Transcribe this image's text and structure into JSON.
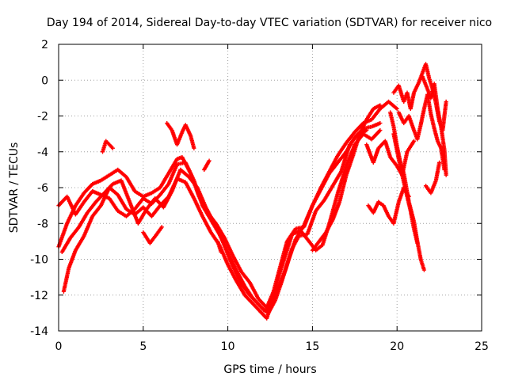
{
  "chart_data": {
    "type": "scatter",
    "title": "Day 194 of 2014, Sidereal Day-to-day VTEC variation (SDTVAR) for receiver nico",
    "xlabel": "GPS time / hours",
    "ylabel": "SDTVAR / TECUs",
    "xlim": [
      0,
      25
    ],
    "ylim": [
      -14,
      2
    ],
    "xticks": [
      0,
      5,
      10,
      15,
      20,
      25
    ],
    "yticks": [
      -14,
      -12,
      -10,
      -8,
      -6,
      -4,
      -2,
      0,
      2
    ],
    "grid": true,
    "marker": "plus",
    "color": "#ff0000",
    "series": [
      {
        "name": "track-1",
        "points": [
          [
            0.0,
            -7.0
          ],
          [
            0.5,
            -6.5
          ],
          [
            1.0,
            -7.5
          ],
          [
            1.5,
            -6.8
          ],
          [
            2.0,
            -6.2
          ],
          [
            2.5,
            -6.4
          ],
          [
            3.0,
            -6.6
          ],
          [
            3.5,
            -7.3
          ],
          [
            4.0,
            -7.6
          ],
          [
            4.5,
            -7.2
          ],
          [
            5.0,
            -6.6
          ],
          [
            5.5,
            -6.9
          ],
          [
            6.0,
            -6.4
          ],
          [
            6.5,
            -5.8
          ],
          [
            7.0,
            -4.7
          ],
          [
            7.5,
            -4.6
          ],
          [
            8.0,
            -5.6
          ],
          [
            8.5,
            -7.0
          ],
          [
            9.0,
            -7.8
          ],
          [
            9.5,
            -8.6
          ],
          [
            10.0,
            -9.6
          ],
          [
            10.5,
            -10.6
          ],
          [
            11.0,
            -11.5
          ],
          [
            11.5,
            -12.2
          ],
          [
            12.0,
            -12.7
          ],
          [
            12.4,
            -13.0
          ],
          [
            12.8,
            -12.3
          ],
          [
            13.2,
            -11.2
          ],
          [
            13.6,
            -10.0
          ],
          [
            14.0,
            -8.9
          ],
          [
            14.5,
            -8.1
          ],
          [
            15.0,
            -7.0
          ],
          [
            15.5,
            -6.0
          ],
          [
            16.0,
            -5.1
          ],
          [
            16.5,
            -4.2
          ],
          [
            17.0,
            -3.5
          ],
          [
            17.5,
            -2.9
          ],
          [
            18.0,
            -2.4
          ],
          [
            18.5,
            -2.2
          ],
          [
            19.0,
            -1.6
          ],
          [
            19.5,
            -1.2
          ],
          [
            20.0,
            -1.6
          ]
        ]
      },
      {
        "name": "track-2",
        "points": [
          [
            0.0,
            -9.3
          ],
          [
            0.5,
            -8.0
          ],
          [
            1.0,
            -7.0
          ],
          [
            1.5,
            -6.3
          ],
          [
            2.0,
            -5.8
          ],
          [
            2.5,
            -5.6
          ],
          [
            3.0,
            -5.3
          ],
          [
            3.5,
            -5.0
          ],
          [
            4.0,
            -5.4
          ],
          [
            4.5,
            -6.2
          ],
          [
            5.0,
            -6.5
          ],
          [
            5.5,
            -6.3
          ],
          [
            6.0,
            -6.0
          ],
          [
            6.5,
            -5.2
          ],
          [
            7.0,
            -4.4
          ],
          [
            7.3,
            -4.3
          ],
          [
            7.8,
            -5.2
          ],
          [
            8.3,
            -6.5
          ],
          [
            8.8,
            -7.4
          ],
          [
            9.3,
            -8.0
          ],
          [
            9.8,
            -8.8
          ],
          [
            10.3,
            -9.8
          ],
          [
            10.8,
            -10.7
          ],
          [
            11.3,
            -11.3
          ],
          [
            11.8,
            -12.2
          ],
          [
            12.3,
            -12.7
          ],
          [
            12.7,
            -11.8
          ],
          [
            13.1,
            -10.4
          ],
          [
            13.5,
            -9.0
          ],
          [
            14.0,
            -8.3
          ],
          [
            14.5,
            -8.2
          ],
          [
            15.0,
            -7.0
          ],
          [
            15.5,
            -6.1
          ],
          [
            16.0,
            -5.2
          ],
          [
            16.5,
            -4.6
          ],
          [
            17.0,
            -4.0
          ],
          [
            17.5,
            -3.2
          ],
          [
            18.0,
            -2.7
          ],
          [
            18.5,
            -2.6
          ],
          [
            19.0,
            -2.4
          ]
        ]
      },
      {
        "name": "track-3",
        "points": [
          [
            0.3,
            -11.8
          ],
          [
            0.6,
            -10.5
          ],
          [
            1.0,
            -9.5
          ],
          [
            1.5,
            -8.7
          ],
          [
            2.0,
            -7.6
          ],
          [
            2.5,
            -7.0
          ],
          [
            3.0,
            -6.0
          ],
          [
            3.5,
            -6.4
          ],
          [
            4.0,
            -7.2
          ],
          [
            4.5,
            -7.5
          ],
          [
            5.0,
            -7.1
          ],
          [
            5.5,
            -7.6
          ],
          [
            6.0,
            -7.0
          ],
          [
            6.5,
            -6.5
          ],
          [
            7.0,
            -5.5
          ],
          [
            7.5,
            -5.7
          ],
          [
            8.0,
            -6.6
          ],
          [
            8.5,
            -7.6
          ],
          [
            9.0,
            -8.5
          ],
          [
            9.5,
            -9.2
          ],
          [
            10.0,
            -10.3
          ],
          [
            10.5,
            -11.2
          ],
          [
            11.0,
            -12.0
          ],
          [
            11.5,
            -12.5
          ],
          [
            12.0,
            -13.0
          ],
          [
            12.3,
            -13.3
          ],
          [
            12.6,
            -12.4
          ],
          [
            13.0,
            -11.0
          ],
          [
            13.4,
            -9.8
          ],
          [
            13.8,
            -8.6
          ],
          [
            14.3,
            -8.4
          ],
          [
            14.8,
            -9.0
          ],
          [
            15.2,
            -9.5
          ],
          [
            15.6,
            -9.2
          ],
          [
            16.0,
            -8.0
          ],
          [
            16.5,
            -6.3
          ],
          [
            17.0,
            -4.8
          ],
          [
            17.5,
            -3.6
          ],
          [
            18.0,
            -3.0
          ],
          [
            18.5,
            -3.3
          ],
          [
            19.0,
            -2.8
          ]
        ]
      },
      {
        "name": "track-4",
        "points": [
          [
            0.2,
            -9.6
          ],
          [
            0.7,
            -8.8
          ],
          [
            1.2,
            -8.2
          ],
          [
            1.7,
            -7.4
          ],
          [
            2.2,
            -6.8
          ],
          [
            2.7,
            -6.3
          ],
          [
            3.2,
            -5.8
          ],
          [
            3.7,
            -5.6
          ],
          [
            4.2,
            -6.8
          ],
          [
            4.7,
            -8.0
          ],
          [
            5.2,
            -7.2
          ],
          [
            5.7,
            -6.6
          ],
          [
            6.2,
            -7.1
          ],
          [
            6.7,
            -6.2
          ],
          [
            7.2,
            -5.0
          ],
          [
            7.7,
            -5.4
          ],
          [
            8.2,
            -6.0
          ],
          [
            8.7,
            -7.1
          ],
          [
            9.2,
            -8.0
          ],
          [
            9.7,
            -9.0
          ],
          [
            10.2,
            -10.2
          ],
          [
            10.7,
            -11.2
          ],
          [
            11.2,
            -11.9
          ],
          [
            11.7,
            -12.4
          ],
          [
            12.2,
            -12.9
          ],
          [
            12.6,
            -12.5
          ],
          [
            13.0,
            -11.6
          ],
          [
            13.4,
            -10.6
          ],
          [
            13.8,
            -9.4
          ],
          [
            14.2,
            -8.7
          ],
          [
            14.7,
            -8.6
          ],
          [
            15.2,
            -7.3
          ],
          [
            15.7,
            -6.7
          ],
          [
            16.2,
            -5.9
          ],
          [
            16.7,
            -5.1
          ],
          [
            17.2,
            -3.6
          ],
          [
            17.7,
            -3.0
          ],
          [
            18.2,
            -2.8
          ]
        ]
      },
      {
        "name": "spike-1",
        "points": [
          [
            2.6,
            -4.0
          ],
          [
            2.8,
            -3.4
          ],
          [
            3.0,
            -3.6
          ],
          [
            3.2,
            -3.8
          ]
        ]
      },
      {
        "name": "spike-2",
        "points": [
          [
            6.4,
            -2.4
          ],
          [
            6.7,
            -2.8
          ],
          [
            7.0,
            -3.6
          ],
          [
            7.3,
            -2.9
          ],
          [
            7.5,
            -2.5
          ],
          [
            7.8,
            -3.1
          ],
          [
            8.0,
            -3.8
          ]
        ]
      },
      {
        "name": "spike-3",
        "points": [
          [
            8.6,
            -5.0
          ],
          [
            8.9,
            -4.5
          ]
        ]
      },
      {
        "name": "dip-1",
        "points": [
          [
            5.0,
            -8.5
          ],
          [
            5.4,
            -9.1
          ],
          [
            5.8,
            -8.6
          ],
          [
            6.1,
            -8.2
          ]
        ]
      },
      {
        "name": "dip-2",
        "points": [
          [
            9.4,
            -9.0
          ],
          [
            9.6,
            -9.6
          ]
        ]
      },
      {
        "name": "track-5",
        "points": [
          [
            15.0,
            -9.5
          ],
          [
            15.4,
            -9.0
          ],
          [
            15.8,
            -8.5
          ],
          [
            16.2,
            -7.8
          ],
          [
            16.6,
            -6.8
          ],
          [
            17.0,
            -5.3
          ],
          [
            17.4,
            -4.2
          ],
          [
            17.8,
            -3.0
          ],
          [
            18.2,
            -2.2
          ],
          [
            18.6,
            -1.6
          ],
          [
            19.0,
            -1.4
          ]
        ]
      },
      {
        "name": "track-6",
        "points": [
          [
            18.2,
            -3.6
          ],
          [
            18.6,
            -4.6
          ],
          [
            18.9,
            -3.8
          ],
          [
            19.3,
            -3.4
          ],
          [
            19.6,
            -4.3
          ],
          [
            20.0,
            -4.8
          ],
          [
            20.3,
            -5.3
          ],
          [
            20.6,
            -4.0
          ],
          [
            21.0,
            -3.4
          ]
        ]
      },
      {
        "name": "track-7",
        "points": [
          [
            18.3,
            -7.0
          ],
          [
            18.6,
            -7.4
          ],
          [
            18.9,
            -6.8
          ],
          [
            19.2,
            -7.0
          ],
          [
            19.5,
            -7.6
          ],
          [
            19.8,
            -8.0
          ],
          [
            20.1,
            -6.8
          ],
          [
            20.4,
            -6.0
          ],
          [
            20.7,
            -6.5
          ]
        ]
      },
      {
        "name": "track-8",
        "points": [
          [
            19.6,
            -1.8
          ],
          [
            19.8,
            -2.6
          ],
          [
            20.0,
            -3.7
          ],
          [
            20.2,
            -4.6
          ],
          [
            20.4,
            -5.2
          ],
          [
            20.7,
            -6.8
          ],
          [
            21.0,
            -7.9
          ],
          [
            21.2,
            -9.0
          ],
          [
            21.4,
            -10.0
          ],
          [
            21.6,
            -10.6
          ]
        ]
      },
      {
        "name": "track-9",
        "points": [
          [
            19.8,
            -3.0
          ],
          [
            20.1,
            -4.4
          ],
          [
            20.4,
            -5.7
          ],
          [
            20.6,
            -6.5
          ],
          [
            20.8,
            -7.3
          ],
          [
            21.0,
            -8.3
          ],
          [
            21.2,
            -9.1
          ]
        ]
      },
      {
        "name": "track-10",
        "points": [
          [
            19.8,
            -0.7
          ],
          [
            20.1,
            -0.3
          ],
          [
            20.4,
            -1.2
          ],
          [
            20.6,
            -0.7
          ],
          [
            20.8,
            -1.6
          ],
          [
            21.0,
            -0.7
          ],
          [
            21.3,
            -0.1
          ],
          [
            21.5,
            0.4
          ],
          [
            21.7,
            0.9
          ],
          [
            21.9,
            0.1
          ],
          [
            22.1,
            -0.5
          ],
          [
            22.3,
            -1.3
          ],
          [
            22.5,
            -2.3
          ],
          [
            22.7,
            -2.8
          ],
          [
            22.9,
            -1.2
          ]
        ]
      },
      {
        "name": "track-11",
        "points": [
          [
            20.1,
            -1.8
          ],
          [
            20.4,
            -2.4
          ],
          [
            20.7,
            -2.0
          ],
          [
            21.0,
            -2.8
          ],
          [
            21.2,
            -3.3
          ],
          [
            21.4,
            -2.5
          ],
          [
            21.6,
            -1.6
          ],
          [
            21.8,
            -0.8
          ],
          [
            22.0,
            -1.9
          ],
          [
            22.2,
            -2.7
          ],
          [
            22.4,
            -3.4
          ],
          [
            22.6,
            -3.8
          ],
          [
            22.8,
            -5.0
          ]
        ]
      },
      {
        "name": "track-12",
        "points": [
          [
            21.5,
            0.2
          ],
          [
            21.8,
            -0.5
          ],
          [
            22.0,
            -1.0
          ],
          [
            22.2,
            -0.2
          ],
          [
            22.4,
            -1.6
          ],
          [
            22.6,
            -2.6
          ],
          [
            22.8,
            -3.9
          ],
          [
            22.9,
            -5.3
          ]
        ]
      },
      {
        "name": "track-13",
        "points": [
          [
            21.7,
            -5.9
          ],
          [
            22.0,
            -6.3
          ],
          [
            22.3,
            -5.6
          ],
          [
            22.5,
            -4.6
          ]
        ]
      }
    ]
  }
}
